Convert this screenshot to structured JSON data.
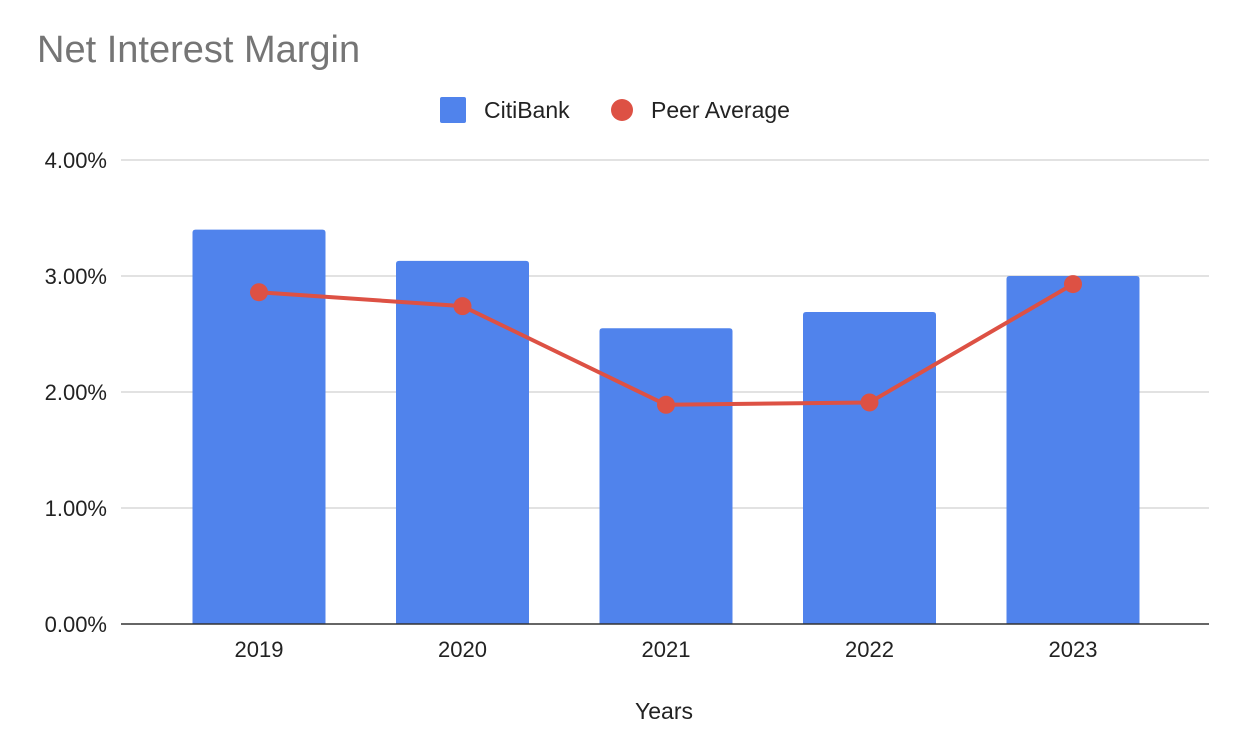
{
  "chart_data": {
    "type": "bar",
    "title": "Net Interest Margin",
    "xlabel": "Years",
    "ylabel": "",
    "categories": [
      "2019",
      "2020",
      "2021",
      "2022",
      "2023"
    ],
    "series": [
      {
        "name": "CitiBank",
        "type": "bar",
        "color": "#5083ec",
        "values": [
          3.4,
          3.13,
          2.55,
          2.69,
          3.0
        ]
      },
      {
        "name": "Peer Average",
        "type": "line",
        "color": "#dd5144",
        "values": [
          2.86,
          2.74,
          1.89,
          1.91,
          2.93
        ]
      }
    ],
    "ylim": [
      0,
      4
    ],
    "yticks": [
      {
        "value": 0,
        "label": "0.00%"
      },
      {
        "value": 1,
        "label": "1.00%"
      },
      {
        "value": 2,
        "label": "2.00%"
      },
      {
        "value": 3,
        "label": "3.00%"
      },
      {
        "value": 4,
        "label": "4.00%"
      }
    ],
    "grid": true,
    "legend_position": "top"
  },
  "colors": {
    "gridline": "#d9d9d9",
    "baseline": "#333333"
  }
}
